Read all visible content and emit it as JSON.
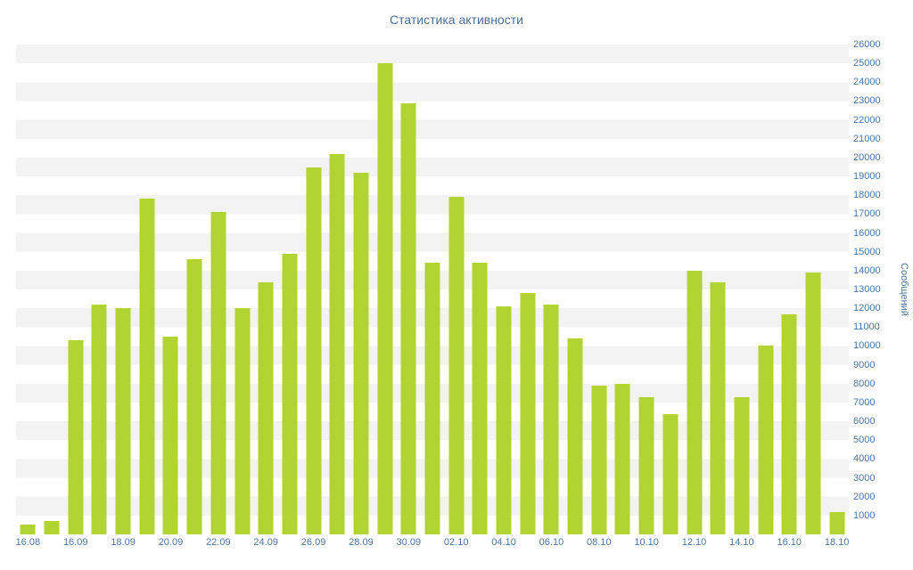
{
  "title": "Статистика активности",
  "colors": {
    "bar": "#b1d432",
    "text": "#4a6d96",
    "tick_text": "#4a74a3",
    "stripe": "#f3f3f3",
    "background": "#ffffff"
  },
  "chart_data": {
    "type": "bar",
    "title": "Статистика активности",
    "xlabel": "",
    "ylabel": "Сообщений",
    "ylim": [
      0,
      26000
    ],
    "y_tick_step": 1000,
    "y_ticks": [
      26000,
      25000,
      24000,
      23000,
      22000,
      21000,
      20000,
      19000,
      18000,
      17000,
      16000,
      15000,
      14000,
      13000,
      12000,
      11000,
      10000,
      9000,
      8000,
      7000,
      6000,
      5000,
      4000,
      3000,
      2000,
      1000
    ],
    "grid": "striped-horizontal-bands",
    "legend": "none",
    "x_tick_labels": [
      "16.08",
      "16.09",
      "18.09",
      "20.09",
      "22.09",
      "24.09",
      "26.09",
      "28.09",
      "30.09",
      "02.10",
      "04.10",
      "06.10",
      "08.10",
      "10.10",
      "12.10",
      "14.10",
      "16.10",
      "18.10"
    ],
    "x_tick_every": 2,
    "values": [
      500,
      700,
      10300,
      12200,
      12000,
      17800,
      10500,
      14600,
      17100,
      12000,
      13400,
      14900,
      19500,
      20200,
      19200,
      25000,
      22900,
      14400,
      17900,
      14400,
      12100,
      12800,
      12200,
      10400,
      7900,
      8000,
      7300,
      6400,
      14000,
      13400,
      7300,
      10000,
      11700,
      13900,
      1200
    ]
  }
}
